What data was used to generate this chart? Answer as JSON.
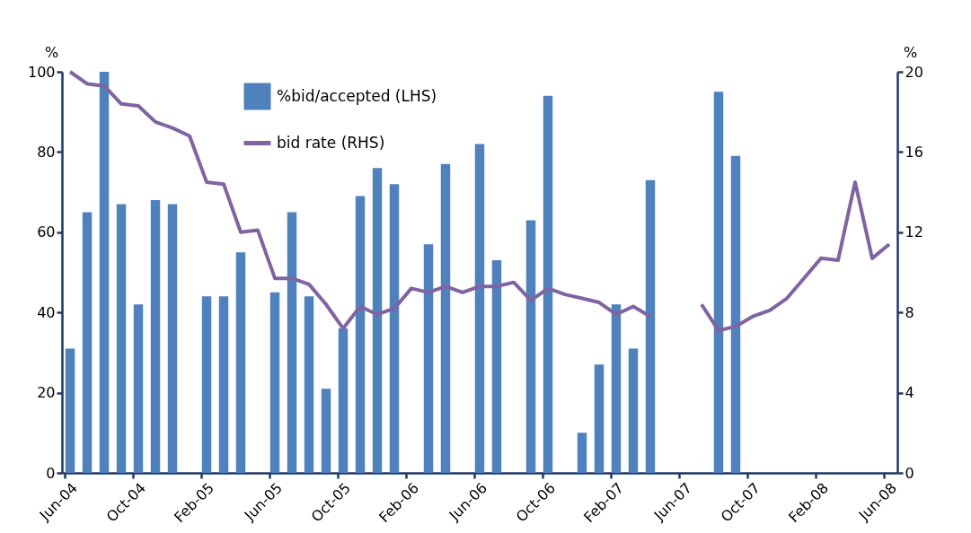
{
  "chart_data": {
    "type": "bar",
    "categories": [
      "Jun-04",
      null,
      null,
      null,
      "Oct-04",
      null,
      null,
      null,
      "Feb-05",
      null,
      null,
      null,
      "Jun-05",
      null,
      null,
      null,
      "Oct-05",
      null,
      null,
      null,
      "Feb-06",
      null,
      null,
      null,
      "Jun-06",
      null,
      null,
      null,
      "Oct-06",
      null,
      null,
      null,
      "Feb-07",
      null,
      null,
      null,
      "Jun-07",
      null,
      null,
      null,
      "Oct-07",
      null,
      null,
      null,
      "Feb-08",
      null,
      null,
      null,
      "Jun-08"
    ],
    "series": [
      {
        "name": "%bid/accepted (LHS)",
        "color": "#4f81bd",
        "values": [
          31,
          65,
          100,
          67,
          42,
          68,
          67,
          null,
          44,
          44,
          55,
          null,
          45,
          65,
          44,
          21,
          36,
          69,
          76,
          72,
          null,
          57,
          77,
          null,
          82,
          53,
          null,
          63,
          94,
          null,
          10,
          27,
          42,
          31,
          73,
          null,
          null,
          null,
          95,
          79,
          null,
          null,
          null,
          null,
          null,
          null,
          null,
          null,
          null
        ]
      },
      {
        "name": "bid rate (RHS)",
        "type": "line",
        "axis": "y2",
        "color": "#8064a2",
        "values": [
          20,
          19.4,
          19.3,
          18.4,
          18.3,
          17.5,
          17.2,
          16.8,
          14.5,
          14.4,
          12.0,
          12.1,
          9.7,
          9.7,
          9.4,
          8.4,
          7.2,
          8.3,
          7.9,
          8.2,
          9.2,
          9.0,
          9.3,
          9.0,
          9.3,
          9.3,
          9.5,
          8.6,
          9.2,
          8.9,
          8.7,
          8.5,
          7.9,
          8.3,
          7.8,
          null,
          null,
          8.4,
          7.1,
          7.3,
          7.8,
          8.1,
          8.7,
          9.7,
          10.7,
          10.6,
          14.5,
          10.7,
          11.4
        ]
      }
    ],
    "ylabel": "%",
    "y2label": "%",
    "ylim": [
      0,
      100
    ],
    "yticks": [
      0,
      20,
      40,
      60,
      80,
      100
    ],
    "y2lim": [
      0,
      20
    ],
    "y2ticks": [
      0,
      4,
      8,
      12,
      16,
      20
    ],
    "legend": "top",
    "grid": false
  }
}
